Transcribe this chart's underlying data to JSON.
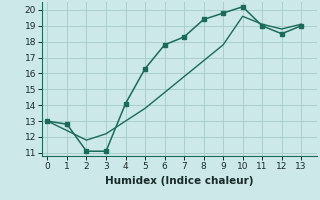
{
  "xlabel": "Humidex (Indice chaleur)",
  "bg_color": "#cce8e8",
  "grid_color": "#aacece",
  "line_color": "#1a6b5a",
  "xlim": [
    -0.3,
    13.8
  ],
  "ylim": [
    10.8,
    20.5
  ],
  "xticks": [
    0,
    1,
    2,
    3,
    4,
    5,
    6,
    7,
    8,
    9,
    10,
    11,
    12,
    13
  ],
  "yticks": [
    11,
    12,
    13,
    14,
    15,
    16,
    17,
    18,
    19,
    20
  ],
  "line1_x": [
    0,
    1,
    2,
    3,
    4,
    5,
    6,
    7,
    8,
    9,
    10,
    11,
    12,
    13
  ],
  "line1_y": [
    13.0,
    12.8,
    11.1,
    11.1,
    14.1,
    16.3,
    17.8,
    18.3,
    19.4,
    19.8,
    20.2,
    19.0,
    18.5,
    19.0
  ],
  "line2_x": [
    0,
    1,
    2,
    3,
    4,
    5,
    6,
    7,
    8,
    9,
    10,
    11,
    12,
    13
  ],
  "line2_y": [
    13.0,
    12.4,
    11.8,
    12.2,
    13.0,
    13.8,
    14.8,
    15.8,
    16.8,
    17.8,
    19.6,
    19.1,
    18.8,
    19.1
  ],
  "fontsize_label": 7.5,
  "tick_fontsize": 6.5
}
